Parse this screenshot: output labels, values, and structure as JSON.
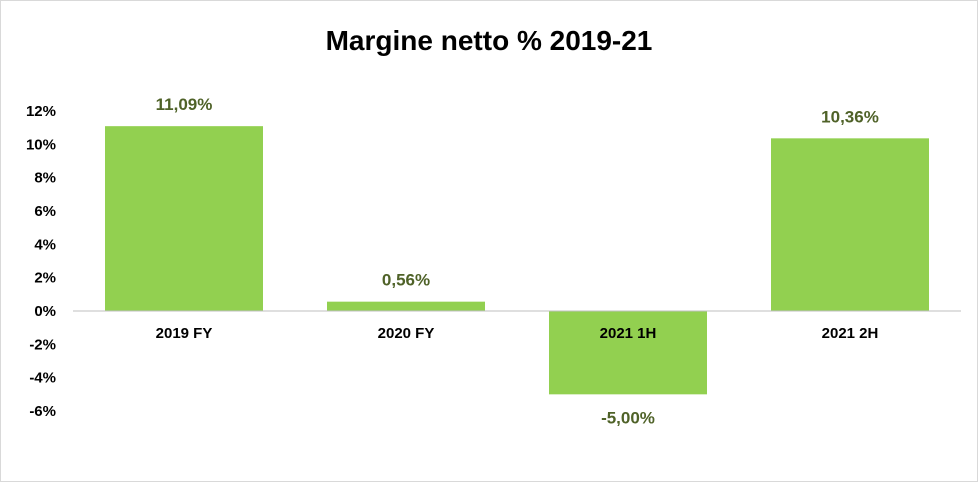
{
  "chart_data": {
    "type": "bar",
    "title": "Margine netto % 2019-21",
    "categories": [
      "2019 FY",
      "2020 FY",
      "2021 1H",
      "2021 2H"
    ],
    "values": [
      11.09,
      0.56,
      -5.0,
      10.36
    ],
    "data_labels": [
      "11,09%",
      "0,56%",
      "-5,00%",
      "10,36%"
    ],
    "y_ticks": [
      "12%",
      "10%",
      "8%",
      "6%",
      "4%",
      "2%",
      "0%",
      "-2%",
      "-4%",
      "-6%"
    ],
    "ylim": [
      -6,
      12
    ],
    "y_step": 2,
    "grid": false,
    "legend": "none",
    "colors": {
      "bar": "#92d050",
      "label": "#4f6228",
      "axis": "#bfbfbf"
    }
  }
}
